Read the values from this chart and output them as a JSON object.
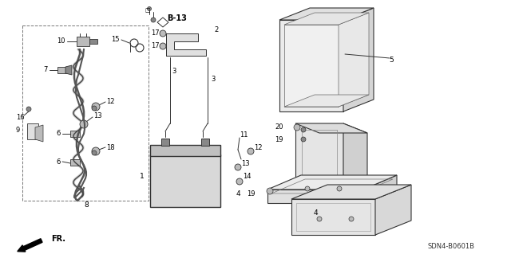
{
  "bg_color": "#ffffff",
  "line_color": "#333333",
  "text_color": "#000000",
  "gray_light": "#e0e0e0",
  "gray_mid": "#bbbbbb",
  "gray_dark": "#888888",
  "sdn_label": "SDN4-B0601B",
  "fr_label": "FR.",
  "b13_label": "B-13",
  "lw": 0.7
}
